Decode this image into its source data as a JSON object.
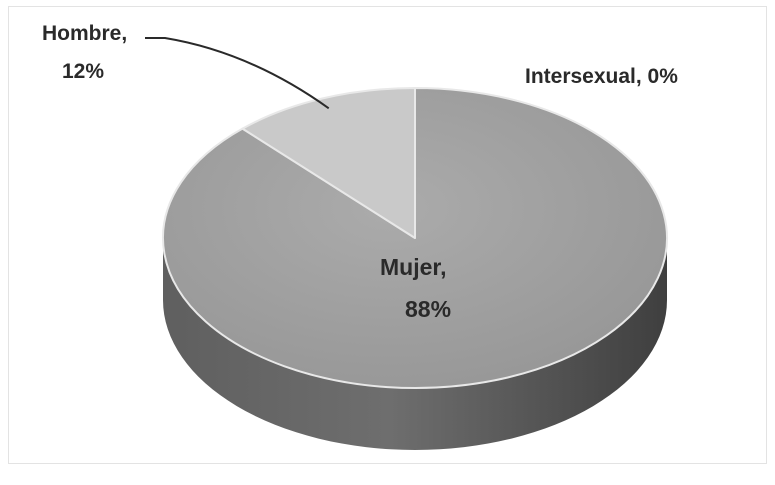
{
  "chart_data": {
    "type": "pie",
    "style": "3d",
    "title": "",
    "slices": [
      {
        "name": "Hombre",
        "value": 12,
        "label_name": "Hombre,",
        "label_value": "12%",
        "color": "#c9c9c9"
      },
      {
        "name": "Intersexual",
        "value": 0,
        "label_name": "Intersexual, 0%",
        "label_value": "",
        "color": "#9a9a9a"
      },
      {
        "name": "Mujer",
        "value": 88,
        "label_name": "Mujer,",
        "label_value": "88%",
        "color": "#a3a3a3"
      }
    ]
  }
}
